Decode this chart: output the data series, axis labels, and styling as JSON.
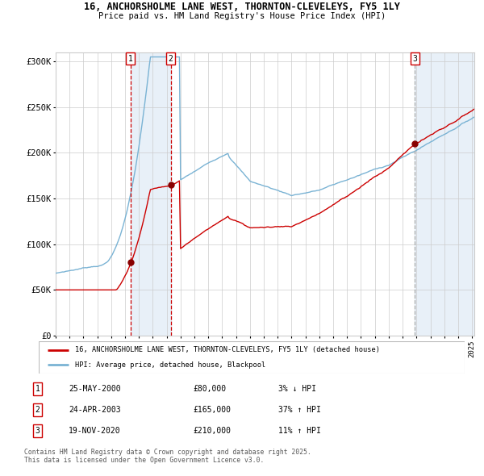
{
  "title_line1": "16, ANCHORSHOLME LANE WEST, THORNTON-CLEVELEYS, FY5 1LY",
  "title_line2": "Price paid vs. HM Land Registry's House Price Index (HPI)",
  "ylim": [
    0,
    310000
  ],
  "yticks": [
    0,
    50000,
    100000,
    150000,
    200000,
    250000,
    300000
  ],
  "ytick_labels": [
    "£0",
    "£50K",
    "£100K",
    "£150K",
    "£200K",
    "£250K",
    "£300K"
  ],
  "sale_year_floats": [
    2000.3833,
    2003.2917,
    2020.875
  ],
  "sale_prices": [
    80000,
    165000,
    210000
  ],
  "sale_labels": [
    "1",
    "2",
    "3"
  ],
  "sale_info": [
    {
      "num": "1",
      "date": "25-MAY-2000",
      "price": "£80,000",
      "hpi": "3% ↓ HPI"
    },
    {
      "num": "2",
      "date": "24-APR-2003",
      "price": "£165,000",
      "hpi": "37% ↑ HPI"
    },
    {
      "num": "3",
      "date": "19-NOV-2020",
      "price": "£210,000",
      "hpi": "11% ↑ HPI"
    }
  ],
  "hpi_line_color": "#7ab3d4",
  "price_line_color": "#cc0000",
  "sale_dot_color": "#880000",
  "vline_color_12": "#cc0000",
  "vline_color_3": "#aaaaaa",
  "band_color": "#ddeeff",
  "grid_color": "#cccccc",
  "background_color": "#ffffff",
  "legend_label_price": "16, ANCHORSHOLME LANE WEST, THORNTON-CLEVELEYS, FY5 1LY (detached house)",
  "legend_label_hpi": "HPI: Average price, detached house, Blackpool",
  "footnote": "Contains HM Land Registry data © Crown copyright and database right 2025.\nThis data is licensed under the Open Government Licence v3.0."
}
